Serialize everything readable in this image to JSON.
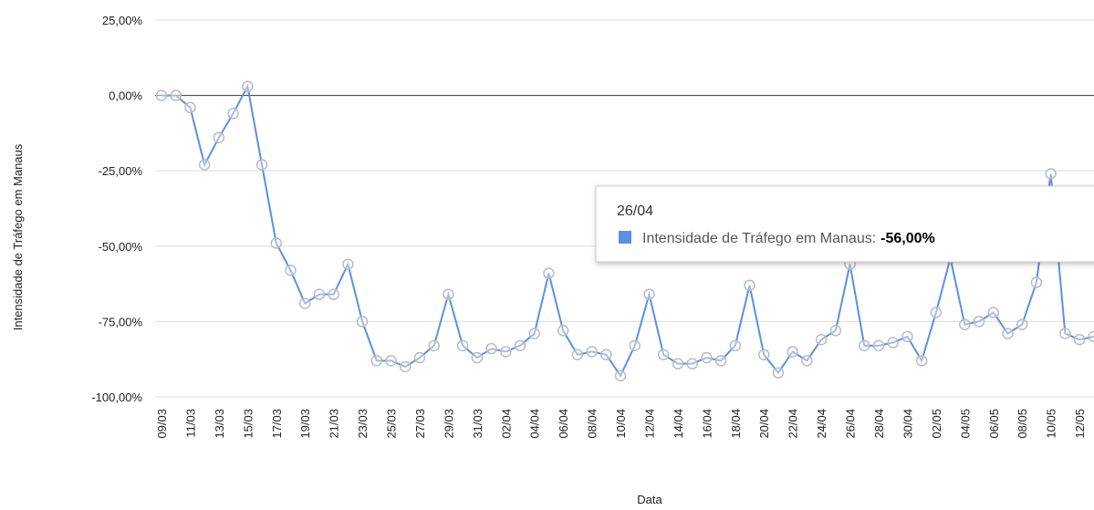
{
  "chart_data": {
    "type": "line",
    "y_axis_label": "Intensidade de Tráfego em Manaus",
    "x_axis_label": "Data",
    "categories": [
      "09/03",
      null,
      "11/03",
      null,
      "13/03",
      null,
      "15/03",
      null,
      "17/03",
      null,
      "19/03",
      null,
      "21/03",
      null,
      "23/03",
      null,
      "25/03",
      null,
      "27/03",
      null,
      "29/03",
      null,
      "31/03",
      null,
      "02/04",
      null,
      "04/04",
      null,
      "06/04",
      null,
      "08/04",
      null,
      "10/04",
      null,
      "12/04",
      null,
      "14/04",
      null,
      "16/04",
      null,
      "18/04",
      null,
      "20/04",
      null,
      "22/04",
      null,
      "24/04",
      null,
      "26/04",
      null,
      "28/04",
      null,
      "30/04",
      null,
      "02/05",
      null,
      "04/05",
      null,
      "06/05",
      null,
      "08/05",
      null,
      "10/05",
      null,
      "12/05",
      null
    ],
    "series": [
      {
        "name": "Intensidade de Tráfego em Manaus",
        "color": "#5b8fe8",
        "values": [
          0,
          0,
          -4,
          -23,
          -14,
          -6,
          3,
          -23,
          -49,
          -58,
          -69,
          -66,
          -66,
          -56,
          -75,
          -88,
          -88,
          -90,
          -87,
          -83,
          -66,
          -83,
          -87,
          -84,
          -85,
          -83,
          -79,
          -59,
          -78,
          -86,
          -85,
          -86,
          -93,
          -83,
          -66,
          -86,
          -89,
          -89,
          -87,
          -88,
          -83,
          -63,
          -86,
          -92,
          -85,
          -88,
          -81,
          -78,
          -56,
          -83,
          -83,
          -82,
          -80,
          -88,
          -72,
          -54,
          -76,
          -75,
          -72,
          -79,
          -76,
          -62,
          -26,
          -79,
          -81,
          -80
        ]
      }
    ],
    "ylim": [
      -100,
      25
    ],
    "yticks": [
      {
        "value": 25,
        "label": "25,00%"
      },
      {
        "value": 0,
        "label": "0,00%"
      },
      {
        "value": -25,
        "label": "-25,00%"
      },
      {
        "value": -50,
        "label": "-50,00%"
      },
      {
        "value": -75,
        "label": "-75,00%"
      },
      {
        "value": -100,
        "label": "-100,00%"
      }
    ],
    "grid": true,
    "tooltip": {
      "title": "26/04",
      "label": "Intensidade de Tráfego em Manaus:",
      "value": "-56,00%"
    }
  }
}
